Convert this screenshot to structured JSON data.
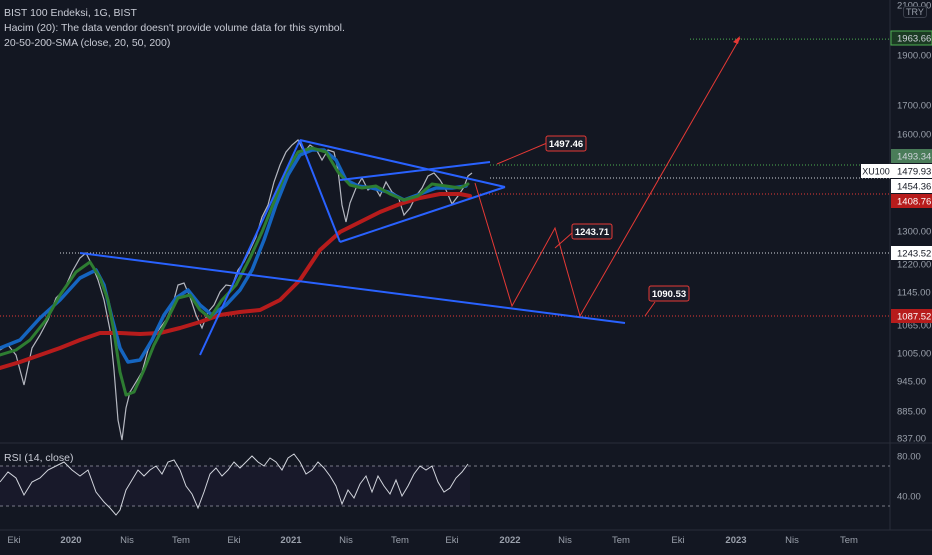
{
  "legend": {
    "title": "BIST 100 Endeksi, 1G, BIST",
    "volume_note": "Hacim (20): The data vendor doesn't provide volume data for this symbol.",
    "sma_label": "20-50-200-SMA (close, 20, 50, 200)"
  },
  "currency": "TRY",
  "chart_data": {
    "type": "line",
    "title": "BIST 100 Endeksi, 1G, BIST",
    "y_ticks": [
      "2100.00",
      "1900.00",
      "1700.00",
      "1600.00",
      "1300.00",
      "1220.00",
      "1145.00",
      "1065.00",
      "1005.00",
      "945.00",
      "885.00",
      "837.00"
    ],
    "ylim": [
      837,
      2100
    ],
    "x_ticks": [
      "Eki",
      "2020",
      "Nis",
      "Tem",
      "Eki",
      "2021",
      "Nis",
      "Tem",
      "Eki",
      "2022",
      "Nis",
      "Tem",
      "Eki",
      "2023",
      "Nis",
      "Tem"
    ],
    "price_labels": [
      {
        "name": "target",
        "value": "1963.66"
      },
      {
        "name": "last-green",
        "value": "1493.34"
      },
      {
        "name": "xu100",
        "symbol": "XU100",
        "value": "1479.93"
      },
      {
        "name": "sma20",
        "value": "1454.36"
      },
      {
        "name": "sma200",
        "value": "1408.76"
      },
      {
        "name": "support",
        "value": "1243.52"
      },
      {
        "name": "low-support",
        "value": "1087.52"
      }
    ],
    "annotations": [
      "1497.46",
      "1243.71",
      "1090.53"
    ],
    "rsi": {
      "label": "RSI (14, close)",
      "ticks": [
        "80.00",
        "40.00"
      ]
    },
    "colors": {
      "price": "#d1d4dc",
      "sma20": "#2e7d32",
      "sma50": "#1565c0",
      "sma200": "#b71c1c",
      "trendline": "#2962ff",
      "projection": "#e53935"
    }
  }
}
